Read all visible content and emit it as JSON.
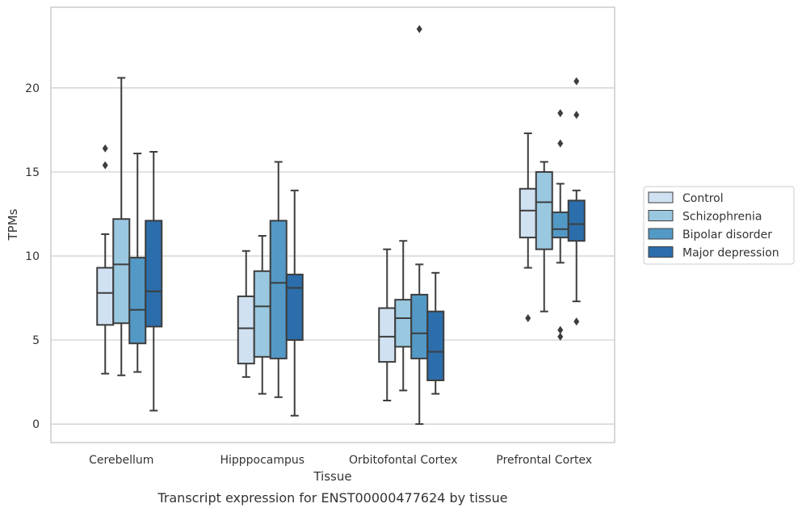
{
  "chart_data": {
    "type": "box",
    "title": "Transcript expression for ENST00000477624 by tissue",
    "xlabel": "Tissue",
    "ylabel": "TPMs",
    "ylim": [
      -1.1,
      24.8
    ],
    "yticks": [
      0,
      5,
      10,
      15,
      20
    ],
    "grid": "horizontal",
    "legend_position": "right",
    "categories": [
      "Cerebellum",
      "Hipppocampus",
      "Orbitofontal Cortex",
      "Prefrontal Cortex"
    ],
    "series": [
      {
        "name": "Control",
        "color": "#d0e1f2",
        "boxes": [
          {
            "whislo": 3.0,
            "q1": 5.9,
            "med": 7.8,
            "q3": 9.3,
            "whishi": 11.3,
            "fliers": [
              15.4,
              16.4
            ]
          },
          {
            "whislo": 2.8,
            "q1": 3.6,
            "med": 5.7,
            "q3": 7.6,
            "whishi": 10.3,
            "fliers": []
          },
          {
            "whislo": 1.4,
            "q1": 3.7,
            "med": 5.2,
            "q3": 6.9,
            "whishi": 10.4,
            "fliers": []
          },
          {
            "whislo": 9.3,
            "q1": 11.1,
            "med": 12.7,
            "q3": 14.0,
            "whishi": 17.3,
            "fliers": [
              6.3
            ]
          }
        ]
      },
      {
        "name": "Schizophrenia",
        "color": "#9ac8e0",
        "boxes": [
          {
            "whislo": 2.9,
            "q1": 6.0,
            "med": 9.5,
            "q3": 12.2,
            "whishi": 20.6,
            "fliers": []
          },
          {
            "whislo": 1.8,
            "q1": 4.0,
            "med": 7.0,
            "q3": 9.1,
            "whishi": 11.2,
            "fliers": []
          },
          {
            "whislo": 2.0,
            "q1": 4.6,
            "med": 6.3,
            "q3": 7.4,
            "whishi": 10.9,
            "fliers": []
          },
          {
            "whislo": 6.7,
            "q1": 10.4,
            "med": 13.2,
            "q3": 15.0,
            "whishi": 15.6,
            "fliers": []
          }
        ]
      },
      {
        "name": "Bipolar disorder",
        "color": "#5399c6",
        "boxes": [
          {
            "whislo": 3.1,
            "q1": 4.8,
            "med": 6.8,
            "q3": 9.9,
            "whishi": 16.1,
            "fliers": []
          },
          {
            "whislo": 1.6,
            "q1": 3.9,
            "med": 8.4,
            "q3": 12.1,
            "whishi": 15.6,
            "fliers": []
          },
          {
            "whislo": 0.0,
            "q1": 3.9,
            "med": 5.4,
            "q3": 7.7,
            "whishi": 9.5,
            "fliers": [
              23.5
            ]
          },
          {
            "whislo": 9.6,
            "q1": 11.1,
            "med": 11.6,
            "q3": 12.6,
            "whishi": 14.3,
            "fliers": [
              5.2,
              5.6,
              16.7,
              18.5
            ]
          }
        ]
      },
      {
        "name": "Major depression",
        "color": "#2b6eab",
        "boxes": [
          {
            "whislo": 0.8,
            "q1": 5.8,
            "med": 7.9,
            "q3": 12.1,
            "whishi": 16.2,
            "fliers": []
          },
          {
            "whislo": 0.5,
            "q1": 5.0,
            "med": 8.1,
            "q3": 8.9,
            "whishi": 13.9,
            "fliers": []
          },
          {
            "whislo": 1.8,
            "q1": 2.6,
            "med": 4.3,
            "q3": 6.7,
            "whishi": 9.0,
            "fliers": []
          },
          {
            "whislo": 7.3,
            "q1": 10.9,
            "med": 11.9,
            "q3": 13.3,
            "whishi": 13.9,
            "fliers": [
              6.1,
              18.4,
              20.4
            ]
          }
        ]
      }
    ]
  }
}
